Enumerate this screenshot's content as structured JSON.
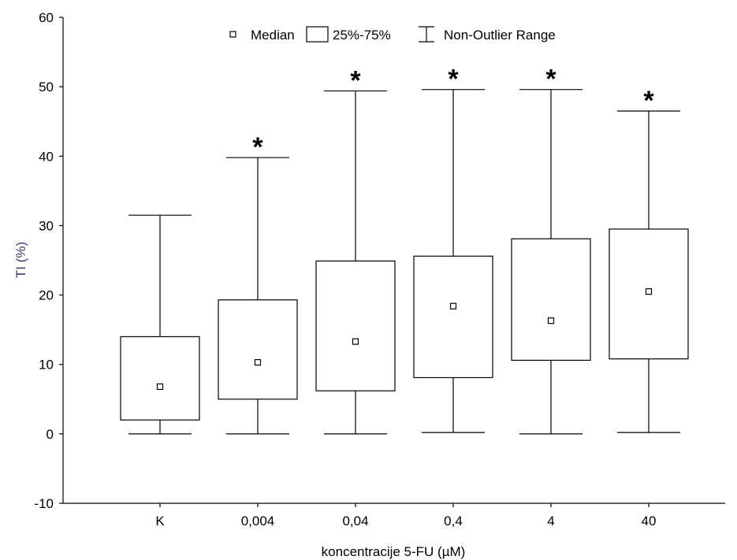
{
  "chart_data": {
    "type": "box",
    "xlabel": "koncentracije 5-FU (µM)",
    "ylabel": "TI (%)",
    "ylim": [
      -10,
      60
    ],
    "yticks": [
      -10,
      0,
      10,
      20,
      30,
      40,
      50,
      60
    ],
    "yticks_text": [
      "-10",
      "0",
      "10",
      "20",
      "30",
      "40",
      "50",
      "60"
    ],
    "categories": [
      "K",
      "0,004",
      "0,04",
      "0,4",
      "4",
      "40"
    ],
    "boxes": [
      {
        "category": "K",
        "min": 0,
        "q1": 2,
        "median": 6.8,
        "q3": 14,
        "max": 31.5,
        "significant": false
      },
      {
        "category": "0,004",
        "min": 0,
        "q1": 5,
        "median": 10.3,
        "q3": 19.3,
        "max": 39.8,
        "significant": true
      },
      {
        "category": "0,04",
        "min": 0,
        "q1": 6.2,
        "median": 13.3,
        "q3": 24.9,
        "max": 49.4,
        "significant": true
      },
      {
        "category": "0,4",
        "min": 0.2,
        "q1": 8.1,
        "median": 18.4,
        "q3": 25.6,
        "max": 49.6,
        "significant": true
      },
      {
        "category": "4",
        "min": 0,
        "q1": 10.6,
        "median": 16.3,
        "q3": 28.1,
        "max": 49.6,
        "significant": true
      },
      {
        "category": "40",
        "min": 0.2,
        "q1": 10.8,
        "median": 20.5,
        "q3": 29.5,
        "max": 46.5,
        "significant": true
      }
    ],
    "significance_marker": "*",
    "legend": {
      "position": "top-center",
      "items": [
        "Median",
        "25%-75%",
        "Non-Outlier Range"
      ]
    },
    "grid": false,
    "colors": {
      "line": "#000000",
      "box_fill": "#ffffff",
      "ylabel": "#3c3c6e",
      "xlabel": "#000000"
    }
  }
}
